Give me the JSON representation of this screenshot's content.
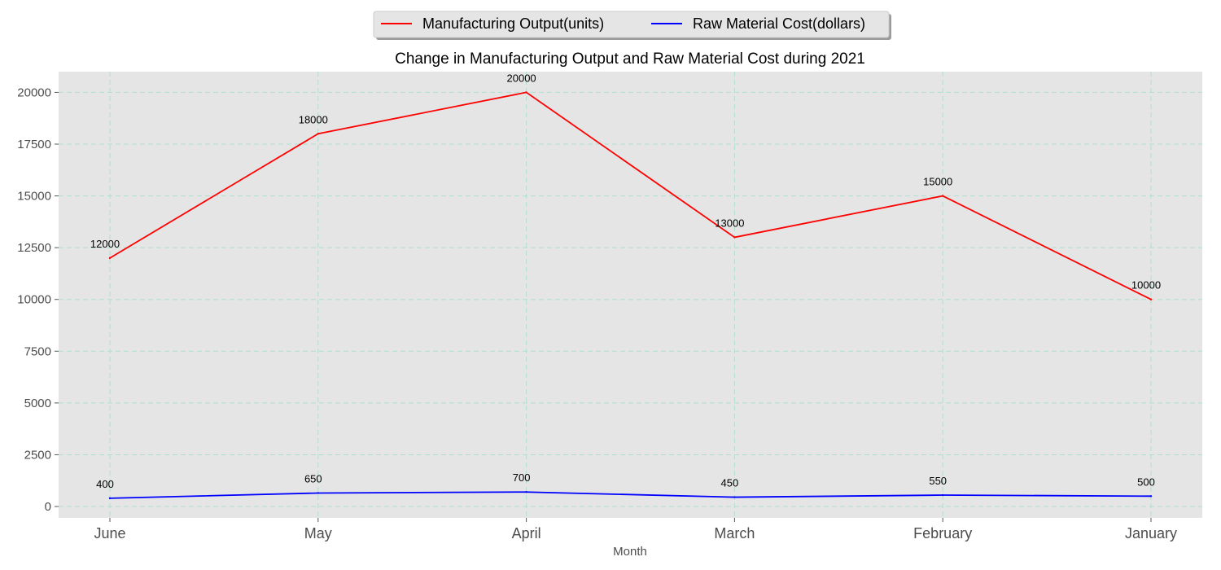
{
  "chart_data": {
    "type": "line",
    "title": "Change in Manufacturing Output and Raw Material Cost during 2021",
    "xlabel": "Month",
    "ylabel": "",
    "categories": [
      "June",
      "May",
      "April",
      "March",
      "February",
      "January"
    ],
    "series": [
      {
        "name": "Manufacturing Output(units)",
        "color": "#ff0000",
        "values": [
          12000,
          18000,
          20000,
          13000,
          15000,
          10000
        ]
      },
      {
        "name": "Raw Material Cost(dollars)",
        "color": "#0000ff",
        "values": [
          400,
          650,
          700,
          450,
          550,
          500
        ]
      }
    ],
    "ylim": [
      -550,
      21000
    ],
    "yticks": [
      0,
      2500,
      5000,
      7500,
      10000,
      12500,
      15000,
      17500,
      20000
    ],
    "grid": true,
    "legend_position": "top-center",
    "background": "#e5e5e5",
    "grid_color": "#b0dfd0"
  }
}
